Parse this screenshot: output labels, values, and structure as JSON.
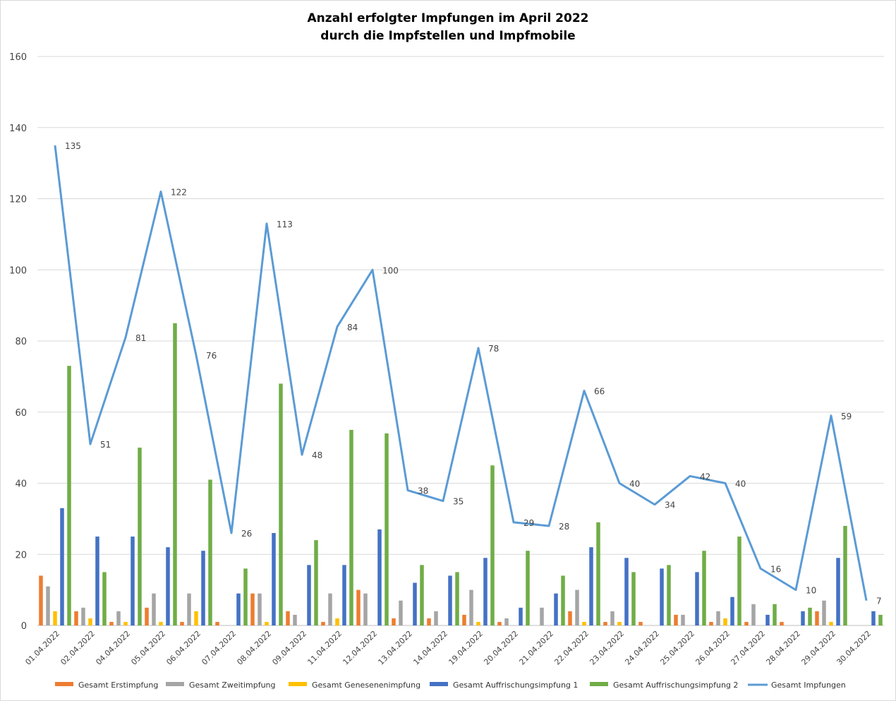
{
  "chart_data": {
    "type": "bar",
    "title": "Anzahl erfolgter Impfungen im April 2022",
    "subtitle": "durch die Impfstellen und Impfmobile",
    "ylim": [
      0,
      160
    ],
    "yticks": [
      0,
      20,
      40,
      60,
      80,
      100,
      120,
      140,
      160
    ],
    "grid": true,
    "legend_position": "bottom",
    "categories": [
      "01.04.2022",
      "02.04.2022",
      "04.04.2022",
      "05.04.2022",
      "06.04.2022",
      "07.04.2022",
      "08.04.2022",
      "09.04.2022",
      "11.04.2022",
      "12.04.2022",
      "13.04.2022",
      "14.04.2022",
      "19.04.2022",
      "20.04.2022",
      "21.04.2022",
      "22.04.2022",
      "23.04.2022",
      "24.04.2022",
      "25.04.2022",
      "26.04.2022",
      "27.04.2022",
      "28.04.2022",
      "29.04.2022",
      "30.04.2022"
    ],
    "series": [
      {
        "name": "Gesamt Erstimpfung",
        "type": "bar",
        "color": "#ED7D31",
        "values": [
          14,
          4,
          1,
          5,
          1,
          1,
          9,
          4,
          1,
          10,
          2,
          2,
          3,
          1,
          0,
          4,
          1,
          1,
          3,
          1,
          1,
          1,
          4,
          0
        ]
      },
      {
        "name": "Gesamt Zweitimpfung",
        "type": "bar",
        "color": "#A5A5A5",
        "values": [
          11,
          5,
          4,
          9,
          9,
          0,
          9,
          3,
          9,
          9,
          7,
          4,
          10,
          2,
          5,
          10,
          4,
          0,
          3,
          4,
          6,
          0,
          7,
          0
        ]
      },
      {
        "name": "Gesamt Genesenenimpfung",
        "type": "bar",
        "color": "#FFC000",
        "values": [
          4,
          2,
          1,
          1,
          4,
          0,
          1,
          0,
          2,
          0,
          0,
          0,
          1,
          0,
          0,
          1,
          1,
          0,
          0,
          2,
          0,
          0,
          1,
          0
        ]
      },
      {
        "name": "Gesamt Auffrischungsimpfung 1",
        "type": "bar",
        "color": "#4472C4",
        "values": [
          33,
          25,
          25,
          22,
          21,
          9,
          26,
          17,
          17,
          27,
          12,
          14,
          19,
          5,
          9,
          22,
          19,
          16,
          15,
          8,
          3,
          4,
          19,
          4
        ]
      },
      {
        "name": "Gesamt Auffrischungsimpfung 2",
        "type": "bar",
        "color": "#70AD47",
        "values": [
          73,
          15,
          50,
          85,
          41,
          16,
          68,
          24,
          55,
          54,
          17,
          15,
          45,
          21,
          14,
          29,
          15,
          17,
          21,
          25,
          6,
          5,
          28,
          3
        ]
      },
      {
        "name": "Gesamt Impfungen",
        "type": "line",
        "color": "#5B9BD5",
        "values": [
          135,
          51,
          81,
          122,
          76,
          26,
          113,
          48,
          84,
          100,
          38,
          35,
          78,
          29,
          28,
          66,
          40,
          34,
          42,
          40,
          16,
          10,
          59,
          7
        ],
        "labels": [
          "135",
          "51",
          "81",
          "122",
          "76",
          "26",
          "113",
          "48",
          "84",
          "100",
          "38",
          "35",
          "78",
          "29",
          "28",
          "66",
          "40",
          "34",
          "42",
          "40",
          "16",
          "10",
          "59",
          "7"
        ]
      }
    ]
  }
}
